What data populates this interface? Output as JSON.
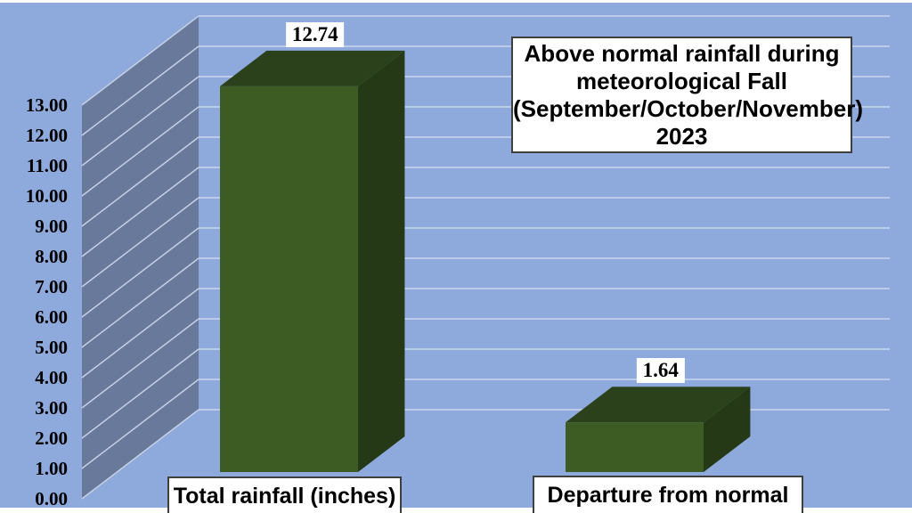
{
  "slide": {
    "background": "#ffffff"
  },
  "chart_data": {
    "type": "bar",
    "projection": "3d",
    "title": "Above normal rainfall during meteorological Fall (September/October/November) 2023",
    "title_lines": [
      "Above normal rainfall during",
      "meteorological Fall",
      "(September/October/November)",
      "2023"
    ],
    "categories": [
      "Total rainfall (inches)",
      "Departure from normal"
    ],
    "values": [
      12.74,
      1.64
    ],
    "data_labels": [
      "12.74",
      "1.64"
    ],
    "xlabel": "",
    "ylabel": "",
    "ylim": [
      0,
      13
    ],
    "ytick_step": 1,
    "ytick_labels": [
      "0.00",
      "1.00",
      "2.00",
      "3.00",
      "4.00",
      "5.00",
      "6.00",
      "7.00",
      "8.00",
      "9.00",
      "10.00",
      "11.00",
      "12.00",
      "13.00"
    ],
    "legend": "none",
    "grid": true,
    "colors": {
      "plot_background": "#8ea9db",
      "gridline": "#ccd8ec",
      "wall": "#68799b",
      "wall_gridline": "#c6d0e2",
      "bar_front": "#3d5c23",
      "bar_top": "#2b411b",
      "bar_side": "#253916",
      "label_box_background": "#ffffff",
      "text_box_border": "#3f3f3f",
      "text": "#000000"
    }
  }
}
